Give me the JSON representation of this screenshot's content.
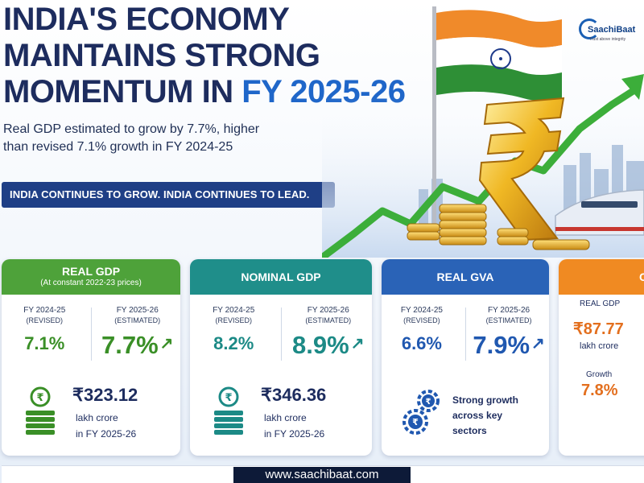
{
  "hero": {
    "title_line1": "INDIA'S ECONOMY",
    "title_line2": "MAINTAINS STRONG",
    "title_line3_prefix": "MOMENTUM IN ",
    "title_line3_highlight": "FY 2025-26",
    "subtitle_line1": "Real GDP estimated to grow by 7.7%, higher",
    "subtitle_line2": "than revised 7.1% growth in FY 2024-25",
    "tagline": "INDIA CONTINUES TO GROW. INDIA CONTINUES TO LEAD."
  },
  "brand": {
    "name": "SaachiBaat",
    "sub": "Trust above integrity"
  },
  "icons": {
    "rupee": "rupee-symbol-icon",
    "flag": "indian-flag-icon",
    "coins": "coin-stack-icon",
    "gears": "rupee-gears-icon",
    "arrow": "up-arrow-icon"
  },
  "colors": {
    "navy": "#1d2c5e",
    "highlight_blue": "#1f66c9",
    "banner": "#1f3f86",
    "real_gdp": "#4ea23a",
    "nominal_gdp": "#1f8e8a",
    "real_gva": "#2a63b7",
    "partial": "#f08a22",
    "footer": "#0d1a38"
  },
  "cards": {
    "real_gdp": {
      "title": "REAL GDP",
      "subtitle": "(At constant 2022-23 prices)",
      "prev_fy": "FY 2024-25",
      "prev_note": "(REVISED)",
      "prev_value": "7.1%",
      "curr_fy": "FY 2025-26",
      "curr_note": "(ESTIMATED)",
      "curr_value": "7.7%",
      "arrow": "↗",
      "amount": "₹323.12",
      "unit": "lakh crore",
      "when": "in FY 2025-26"
    },
    "nominal_gdp": {
      "title": "NOMINAL GDP",
      "prev_fy": "FY 2024-25",
      "prev_note": "(REVISED)",
      "prev_value": "8.2%",
      "curr_fy": "FY 2025-26",
      "curr_note": "(ESTIMATED)",
      "curr_value": "8.9%",
      "arrow": "↗",
      "amount": "₹346.36",
      "unit": "lakh crore",
      "when": "in FY 2025-26"
    },
    "real_gva": {
      "title": "REAL GVA",
      "prev_fy": "FY 2024-25",
      "prev_note": "(REVISED)",
      "prev_value": "6.6%",
      "curr_fy": "FY 2025-26",
      "curr_note": "(ESTIMATED)",
      "curr_value": "7.9%",
      "arrow": "↗",
      "text_line1": "Strong growth",
      "text_line2": "across key",
      "text_line3": "sectors"
    },
    "partial": {
      "title": "C",
      "label1": "REAL GDP",
      "value1": "₹87.77",
      "unit1": "lakh crore",
      "label2": "Growth",
      "value2": "7.8%"
    }
  },
  "footer": {
    "url": "www.saachibaat.com"
  }
}
